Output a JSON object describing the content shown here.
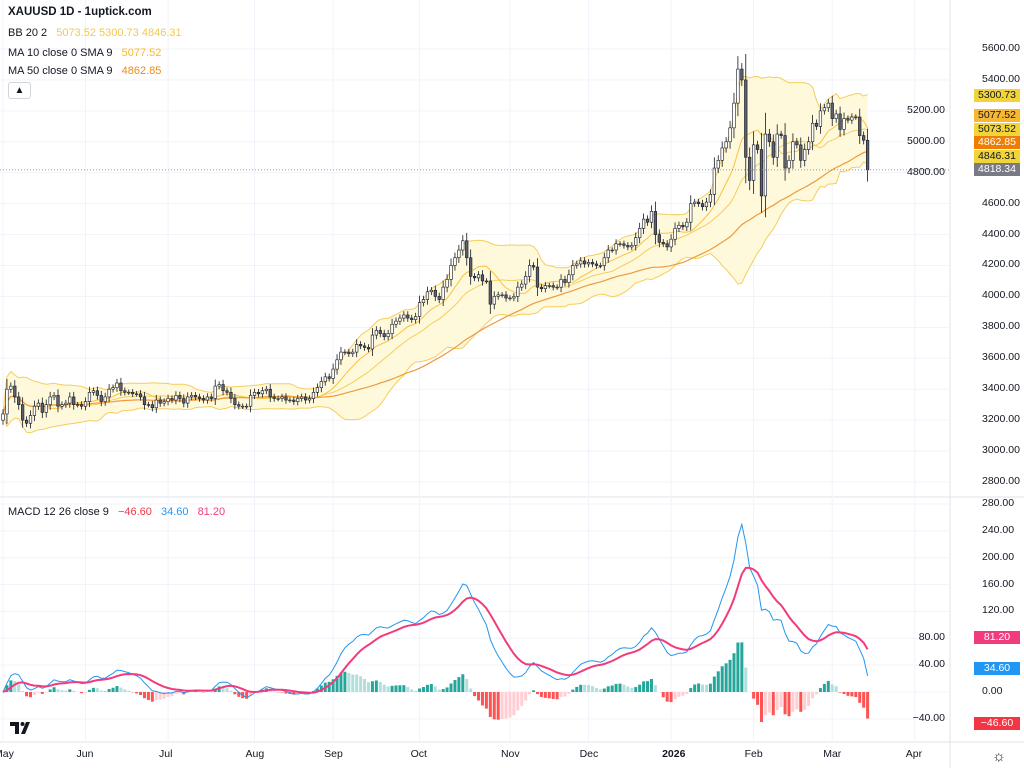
{
  "header": {
    "title": "XAUUSD 1D - 1uptick.com",
    "bb": {
      "label": "BB 20 2",
      "values": [
        "5073.52",
        "5300.73",
        "4846.31"
      ],
      "color": "#f2c94c"
    },
    "ma10": {
      "label": "MA 10 close 0 SMA 9",
      "value": "5077.52",
      "color": "#f7b731"
    },
    "ma50": {
      "label": "MA 50 close 0 SMA 9",
      "value": "4862.85",
      "color": "#ef8a17"
    },
    "collapse_icon": "chevron-up-icon"
  },
  "macd_legend": {
    "label": "MACD 12 26 close 9",
    "values": [
      {
        "text": "−46.60",
        "color": "#f23645"
      },
      {
        "text": "34.60",
        "color": "#2196f3"
      },
      {
        "text": "81.20",
        "color": "#f23b7c"
      }
    ]
  },
  "price_badges": [
    {
      "text": "5300.73",
      "value": 5300.73,
      "bg": "#f0d43a",
      "fg": "#131722"
    },
    {
      "text": "5077.52",
      "value": 5077.52,
      "bg": "#f7b731",
      "fg": "#131722"
    },
    {
      "text": "5073.52",
      "value": 5073.52,
      "bg": "#f0d43a",
      "fg": "#131722"
    },
    {
      "text": "4862.85",
      "value": 4862.85,
      "bg": "#ef7d00",
      "fg": "#ffffff"
    },
    {
      "text": "4846.31",
      "value": 4846.31,
      "bg": "#f0d43a",
      "fg": "#131722"
    },
    {
      "text": "4818.34",
      "value": 4818.34,
      "bg": "#787b86",
      "fg": "#ffffff"
    }
  ],
  "macd_badges": [
    {
      "text": "81.20",
      "value": 81.2,
      "bg": "#f23b7c",
      "fg": "#ffffff"
    },
    {
      "text": "34.60",
      "value": 34.6,
      "bg": "#2196f3",
      "fg": "#ffffff"
    },
    {
      "text": "−46.60",
      "value": -46.6,
      "bg": "#f23645",
      "fg": "#ffffff"
    }
  ],
  "footer": {
    "settings_icon": "gear-icon",
    "logo": "TV"
  },
  "chart_data": [
    {
      "type": "candlestick",
      "symbol": "XAUUSD",
      "interval": "1D",
      "last_price": 4818.34,
      "ylim": [
        2700,
        5700
      ],
      "y_ticks": [
        "5600.00",
        "5400.00",
        "5200.00",
        "5000.00",
        "4800.00",
        "4600.00",
        "4400.00",
        "4200.00",
        "4000.00",
        "3800.00",
        "3600.00",
        "3400.00",
        "3200.00",
        "3000.00",
        "2800.00"
      ],
      "x_labels": [
        {
          "label": "May",
          "index": 0
        },
        {
          "label": "Jun",
          "index": 21
        },
        {
          "label": "Jul",
          "index": 42
        },
        {
          "label": "Aug",
          "index": 64
        },
        {
          "label": "Sep",
          "index": 84
        },
        {
          "label": "Oct",
          "index": 106
        },
        {
          "label": "Nov",
          "index": 129
        },
        {
          "label": "Dec",
          "index": 149
        },
        {
          "label": "2026",
          "index": 170,
          "bold": true
        },
        {
          "label": "Feb",
          "index": 191
        },
        {
          "label": "Mar",
          "index": 211
        },
        {
          "label": "Apr",
          "index": 232
        }
      ],
      "grid": true,
      "colors": {
        "up_fill": "#ffffff",
        "up_border": "#131722",
        "down_fill": "#5d606b",
        "down_border": "#131722",
        "bb_band": "#f5cd5b",
        "bb_fill": "#fff8d6",
        "ma10": "#f7c244",
        "ma50": "#ef9a3c"
      },
      "indicators": [
        "BB 20 2",
        "MA 10",
        "MA 50"
      ],
      "close": [
        3240,
        3400,
        3420,
        3350,
        3300,
        3200,
        3180,
        3230,
        3290,
        3310,
        3250,
        3300,
        3350,
        3360,
        3290,
        3300,
        3310,
        3350,
        3300,
        3300,
        3290,
        3320,
        3380,
        3390,
        3360,
        3320,
        3350,
        3400,
        3410,
        3440,
        3390,
        3380,
        3380,
        3370,
        3370,
        3350,
        3300,
        3300,
        3280,
        3330,
        3310,
        3320,
        3340,
        3330,
        3360,
        3340,
        3310,
        3350,
        3360,
        3350,
        3340,
        3330,
        3350,
        3340,
        3420,
        3430,
        3390,
        3380,
        3340,
        3300,
        3290,
        3290,
        3290,
        3360,
        3380,
        3370,
        3390,
        3400,
        3350,
        3340,
        3340,
        3350,
        3330,
        3330,
        3320,
        3340,
        3350,
        3330,
        3340,
        3380,
        3410,
        3450,
        3480,
        3470,
        3530,
        3590,
        3640,
        3640,
        3630,
        3640,
        3690,
        3680,
        3670,
        3660,
        3750,
        3780,
        3760,
        3740,
        3760,
        3820,
        3840,
        3860,
        3880,
        3860,
        3850,
        3870,
        3960,
        3980,
        4030,
        4040,
        4000,
        3980,
        4060,
        4110,
        4200,
        4250,
        4300,
        4360,
        4250,
        4130,
        4120,
        4140,
        4100,
        4100,
        3950,
        4000,
        4010,
        4010,
        3990,
        3990,
        4000,
        4060,
        4080,
        4130,
        4200,
        4190,
        4060,
        4050,
        4070,
        4070,
        4060,
        4060,
        4110,
        4090,
        4140,
        4200,
        4210,
        4230,
        4210,
        4220,
        4210,
        4200,
        4200,
        4250,
        4300,
        4300,
        4340,
        4340,
        4330,
        4320,
        4330,
        4380,
        4440,
        4500,
        4480,
        4550,
        4400,
        4350,
        4340,
        4320,
        4370,
        4440,
        4460,
        4450,
        4480,
        4600,
        4610,
        4600,
        4580,
        4610,
        4660,
        4830,
        4880,
        4960,
        5000,
        5090,
        5250,
        5470,
        5400,
        4900,
        4750,
        4980,
        4950,
        4650,
        5050,
        5000,
        4900,
        5050,
        5040,
        4830,
        4880,
        5000,
        4980,
        4880,
        4950,
        5000,
        5120,
        5100,
        5200,
        5220,
        5250,
        5150,
        5180,
        5080,
        5150,
        5140,
        5160,
        5160,
        5040,
        5010,
        4818.34
      ]
    },
    {
      "type": "macd",
      "params": "12 26 close 9",
      "ylim": [
        -60,
        290
      ],
      "y_ticks": [
        "280.00",
        "240.00",
        "200.00",
        "160.00",
        "120.00",
        "80.00",
        "40.00",
        "0.00",
        "-40.00"
      ],
      "last": {
        "macd": 34.6,
        "signal": 81.2,
        "histogram": -46.6
      },
      "colors": {
        "macd": "#2196f3",
        "signal": "#f23b7c",
        "hist_up_strong": "#26a69a",
        "hist_up_weak": "#b2dfdb",
        "hist_down_strong": "#ff5252",
        "hist_down_weak": "#ffcdd2"
      }
    }
  ]
}
